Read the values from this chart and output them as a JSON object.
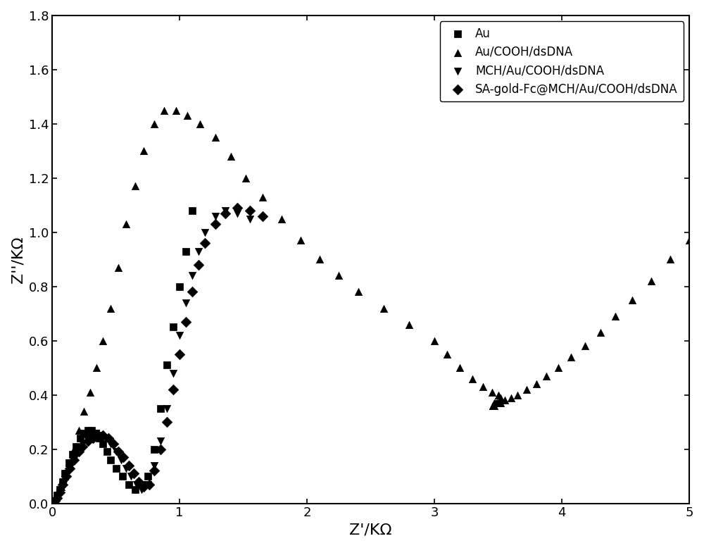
{
  "title": "",
  "xlabel": "Z'/KΩ",
  "ylabel": "Z''/KΩ",
  "xlim": [
    0,
    5
  ],
  "ylim": [
    0,
    1.8
  ],
  "xticks": [
    0,
    1,
    2,
    3,
    4,
    5
  ],
  "yticks": [
    0.0,
    0.2,
    0.4,
    0.6,
    0.8,
    1.0,
    1.2,
    1.4,
    1.6,
    1.8
  ],
  "series": [
    {
      "label": "Au",
      "marker": "s",
      "color": "#000000",
      "x": [
        0.02,
        0.04,
        0.06,
        0.08,
        0.1,
        0.13,
        0.16,
        0.19,
        0.22,
        0.25,
        0.28,
        0.31,
        0.34,
        0.37,
        0.4,
        0.43,
        0.46,
        0.5,
        0.55,
        0.6,
        0.65,
        0.7,
        0.75,
        0.8,
        0.85,
        0.9,
        0.95,
        1.0,
        1.05,
        1.1
      ],
      "y": [
        0.01,
        0.03,
        0.05,
        0.08,
        0.11,
        0.15,
        0.18,
        0.21,
        0.24,
        0.26,
        0.27,
        0.27,
        0.26,
        0.24,
        0.22,
        0.19,
        0.16,
        0.13,
        0.1,
        0.07,
        0.05,
        0.07,
        0.1,
        0.2,
        0.35,
        0.51,
        0.65,
        0.8,
        0.93,
        1.08
      ]
    },
    {
      "label": "Au/COOH/dsDNA",
      "marker": "^",
      "color": "#000000",
      "x": [
        0.02,
        0.04,
        0.07,
        0.1,
        0.13,
        0.17,
        0.21,
        0.25,
        0.3,
        0.35,
        0.4,
        0.46,
        0.52,
        0.58,
        0.65,
        0.72,
        0.8,
        0.88,
        0.97,
        1.06,
        1.16,
        1.28,
        1.4,
        1.52,
        1.65,
        1.8,
        1.95,
        2.1,
        2.25,
        2.4,
        2.6,
        2.8,
        3.0,
        3.1,
        3.2,
        3.3,
        3.38,
        3.45,
        3.5,
        3.52,
        3.52,
        3.5,
        3.48,
        3.47,
        3.46,
        3.46,
        3.47,
        3.49,
        3.52,
        3.55,
        3.6,
        3.65,
        3.72,
        3.8,
        3.88,
        3.97,
        4.07,
        4.18,
        4.3,
        4.42,
        4.55,
        4.7,
        4.85,
        5.0
      ],
      "y": [
        0.01,
        0.03,
        0.06,
        0.1,
        0.15,
        0.2,
        0.27,
        0.34,
        0.41,
        0.5,
        0.6,
        0.72,
        0.87,
        1.03,
        1.17,
        1.3,
        1.4,
        1.45,
        1.45,
        1.43,
        1.4,
        1.35,
        1.28,
        1.2,
        1.13,
        1.05,
        0.97,
        0.9,
        0.84,
        0.78,
        0.72,
        0.66,
        0.6,
        0.55,
        0.5,
        0.46,
        0.43,
        0.41,
        0.4,
        0.39,
        0.38,
        0.37,
        0.37,
        0.37,
        0.36,
        0.36,
        0.36,
        0.37,
        0.37,
        0.38,
        0.39,
        0.4,
        0.42,
        0.44,
        0.47,
        0.5,
        0.54,
        0.58,
        0.63,
        0.69,
        0.75,
        0.82,
        0.9,
        0.97
      ]
    },
    {
      "label": "MCH/Au/COOH/dsDNA",
      "marker": "v",
      "color": "#000000",
      "x": [
        0.02,
        0.04,
        0.06,
        0.08,
        0.1,
        0.12,
        0.15,
        0.18,
        0.21,
        0.24,
        0.27,
        0.3,
        0.34,
        0.38,
        0.42,
        0.46,
        0.5,
        0.54,
        0.58,
        0.62,
        0.66,
        0.7,
        0.75,
        0.8,
        0.85,
        0.9,
        0.95,
        1.0,
        1.05,
        1.1,
        1.15,
        1.2,
        1.28,
        1.36,
        1.45,
        1.55
      ],
      "y": [
        0.01,
        0.02,
        0.04,
        0.06,
        0.08,
        0.11,
        0.14,
        0.17,
        0.19,
        0.22,
        0.24,
        0.25,
        0.26,
        0.25,
        0.24,
        0.22,
        0.19,
        0.16,
        0.13,
        0.1,
        0.07,
        0.05,
        0.07,
        0.14,
        0.23,
        0.35,
        0.48,
        0.62,
        0.74,
        0.84,
        0.93,
        1.0,
        1.06,
        1.08,
        1.07,
        1.05
      ]
    },
    {
      "label": "SA-gold-Fc@MCH/Au/COOH/dsDNA",
      "marker": "D",
      "color": "#000000",
      "x": [
        0.02,
        0.04,
        0.06,
        0.08,
        0.11,
        0.14,
        0.17,
        0.21,
        0.24,
        0.28,
        0.32,
        0.36,
        0.4,
        0.44,
        0.48,
        0.52,
        0.56,
        0.6,
        0.64,
        0.68,
        0.72,
        0.76,
        0.8,
        0.85,
        0.9,
        0.95,
        1.0,
        1.05,
        1.1,
        1.15,
        1.2,
        1.28,
        1.36,
        1.45,
        1.55,
        1.65
      ],
      "y": [
        0.01,
        0.02,
        0.04,
        0.07,
        0.1,
        0.13,
        0.16,
        0.19,
        0.21,
        0.23,
        0.24,
        0.25,
        0.25,
        0.24,
        0.22,
        0.19,
        0.17,
        0.14,
        0.11,
        0.08,
        0.06,
        0.07,
        0.12,
        0.2,
        0.3,
        0.42,
        0.55,
        0.67,
        0.78,
        0.88,
        0.96,
        1.03,
        1.07,
        1.09,
        1.08,
        1.06
      ]
    }
  ],
  "legend_loc": "upper right",
  "markersize": 55,
  "background_color": "#ffffff",
  "axis_label_fontsize": 16,
  "tick_fontsize": 13,
  "legend_fontsize": 12
}
